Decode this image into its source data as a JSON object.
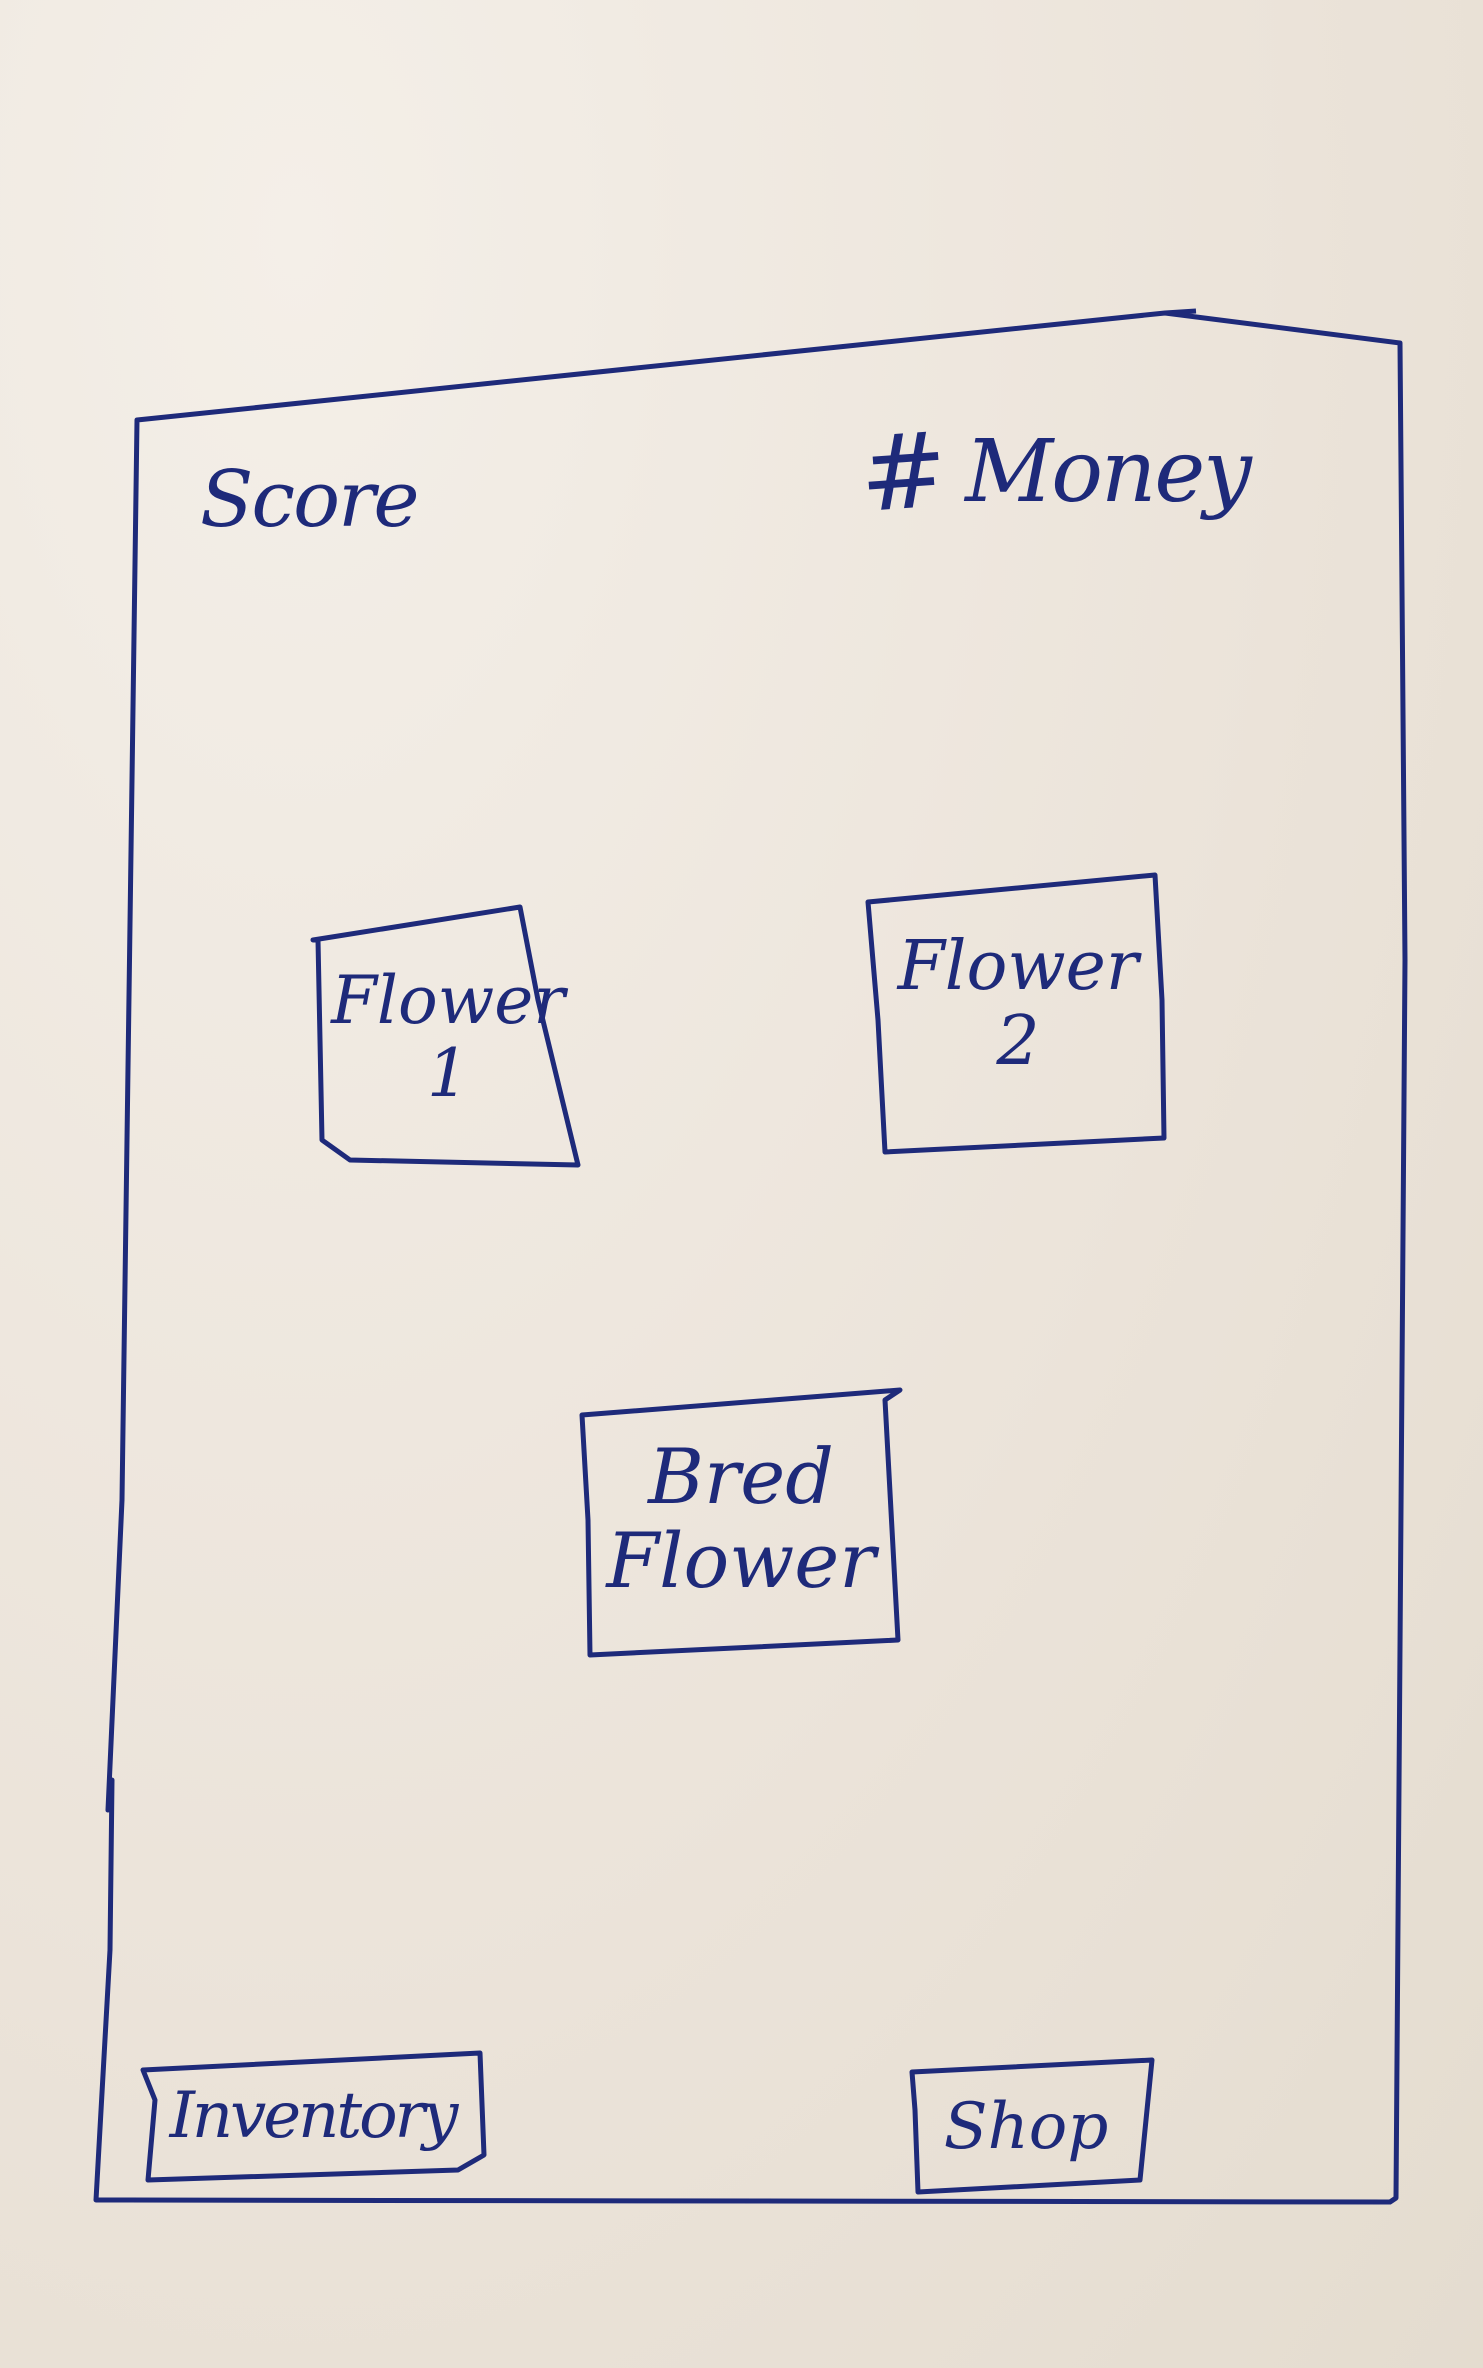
{
  "header": {
    "score_label": "Score",
    "money_icon": "money-icon",
    "money_icon_glyph": "#",
    "money_label": "Money"
  },
  "garden": {
    "flower1_label": "Flower\n1",
    "flower2_label": "Flower\n2",
    "bred_flower_label": "Bred\nFlower"
  },
  "footer": {
    "inventory_label": "Inventory",
    "shop_label": "Shop"
  },
  "colors": {
    "ink": "#1e2a7a",
    "paper": "#efe8e0"
  }
}
